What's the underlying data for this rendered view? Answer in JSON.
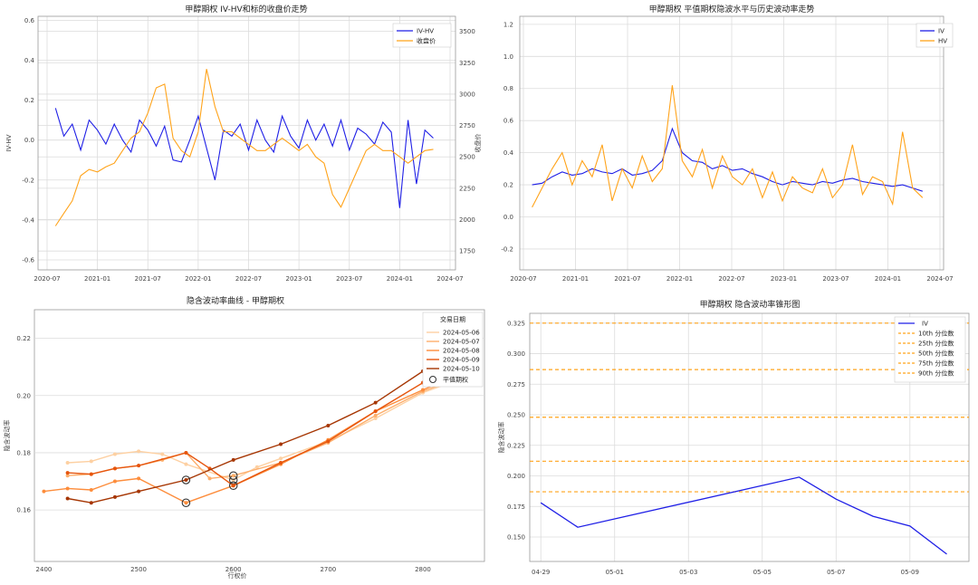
{
  "chart_data": [
    {
      "type": "line",
      "title": "甲醇期权 IV-HV和标的收盘价走势",
      "ylabel": "IV-HV",
      "y2label": "收盘价",
      "x_ticks": [
        "2020-07",
        "2021-01",
        "2021-07",
        "2022-01",
        "2022-07",
        "2023-01",
        "2023-07",
        "2024-01",
        "2024-07"
      ],
      "y_ticks": [
        "0.6",
        "0.4",
        "0.2",
        "0.0",
        "-0.2",
        "-0.4",
        "-0.6"
      ],
      "y2_ticks": [
        "3500",
        "3250",
        "3000",
        "2750",
        "2500",
        "2250",
        "2000",
        "1750"
      ],
      "xlim": [
        "2020-07",
        "2024-07"
      ],
      "ylim": [
        -0.65,
        0.62
      ],
      "y2lim": [
        1600,
        3620
      ],
      "legend_position": "top-right",
      "series": [
        {
          "name": "IV-HV",
          "axis": "left",
          "color": "#1f1fe6",
          "x": [
            "2020-08",
            "2020-09",
            "2020-10",
            "2020-11",
            "2020-12",
            "2021-01",
            "2021-02",
            "2021-03",
            "2021-04",
            "2021-05",
            "2021-06",
            "2021-07",
            "2021-08",
            "2021-09",
            "2021-10",
            "2021-11",
            "2021-12",
            "2022-01",
            "2022-02",
            "2022-03",
            "2022-04",
            "2022-05",
            "2022-06",
            "2022-07",
            "2022-08",
            "2022-09",
            "2022-10",
            "2022-11",
            "2022-12",
            "2023-01",
            "2023-02",
            "2023-03",
            "2023-04",
            "2023-05",
            "2023-06",
            "2023-07",
            "2023-08",
            "2023-09",
            "2023-10",
            "2023-11",
            "2023-12",
            "2024-01",
            "2024-02",
            "2024-03",
            "2024-04",
            "2024-05"
          ],
          "values": [
            0.16,
            0.02,
            0.08,
            -0.05,
            0.1,
            0.05,
            -0.02,
            0.08,
            0.0,
            -0.06,
            0.1,
            0.05,
            -0.03,
            0.07,
            -0.1,
            -0.11,
            0.0,
            0.12,
            -0.04,
            -0.2,
            0.05,
            0.02,
            0.08,
            -0.05,
            0.1,
            0.0,
            -0.06,
            0.12,
            0.02,
            -0.04,
            0.1,
            0.0,
            0.08,
            -0.03,
            0.1,
            -0.05,
            0.06,
            0.03,
            -0.02,
            0.09,
            0.04,
            -0.34,
            0.1,
            -0.22,
            0.05,
            0.01
          ]
        },
        {
          "name": "收盘价",
          "axis": "right",
          "color": "#ffa31a",
          "x": [
            "2020-08",
            "2020-09",
            "2020-10",
            "2020-11",
            "2020-12",
            "2021-01",
            "2021-02",
            "2021-03",
            "2021-04",
            "2021-05",
            "2021-06",
            "2021-07",
            "2021-08",
            "2021-09",
            "2021-10",
            "2021-11",
            "2021-12",
            "2022-01",
            "2022-02",
            "2022-03",
            "2022-04",
            "2022-05",
            "2022-06",
            "2022-07",
            "2022-08",
            "2022-09",
            "2022-10",
            "2022-11",
            "2022-12",
            "2023-01",
            "2023-02",
            "2023-03",
            "2023-04",
            "2023-05",
            "2023-06",
            "2023-07",
            "2023-08",
            "2023-09",
            "2023-10",
            "2023-11",
            "2023-12",
            "2024-01",
            "2024-02",
            "2024-03",
            "2024-04",
            "2024-05"
          ],
          "values": [
            1950,
            2050,
            2150,
            2350,
            2400,
            2380,
            2420,
            2450,
            2550,
            2650,
            2700,
            2850,
            3050,
            3080,
            2650,
            2550,
            2500,
            2700,
            3200,
            2900,
            2700,
            2700,
            2650,
            2600,
            2550,
            2550,
            2600,
            2650,
            2600,
            2550,
            2600,
            2500,
            2450,
            2200,
            2100,
            2250,
            2400,
            2550,
            2600,
            2550,
            2550,
            2500,
            2450,
            2500,
            2550,
            2560
          ]
        }
      ]
    },
    {
      "type": "line",
      "title": "甲醇期权 平值期权隐波水平与历史波动率走势",
      "x_ticks": [
        "2020-07",
        "2021-01",
        "2021-07",
        "2022-01",
        "2022-07",
        "2023-01",
        "2023-07",
        "2024-01",
        "2024-07"
      ],
      "y_ticks": [
        "1.2",
        "1.0",
        "0.8",
        "0.6",
        "0.4",
        "0.2",
        "0.0",
        "-0.2"
      ],
      "xlim": [
        "2020-07",
        "2024-07"
      ],
      "ylim": [
        -0.33,
        1.25
      ],
      "legend_position": "top-right",
      "series": [
        {
          "name": "IV",
          "color": "#1f1fe6",
          "values": [
            0.2,
            0.21,
            0.25,
            0.28,
            0.26,
            0.27,
            0.3,
            0.28,
            0.27,
            0.3,
            0.26,
            0.27,
            0.29,
            0.35,
            0.55,
            0.4,
            0.35,
            0.34,
            0.3,
            0.32,
            0.29,
            0.3,
            0.27,
            0.25,
            0.22,
            0.2,
            0.22,
            0.21,
            0.2,
            0.22,
            0.21,
            0.23,
            0.24,
            0.22,
            0.21,
            0.2,
            0.19,
            0.2,
            0.18,
            0.16
          ]
        },
        {
          "name": "HV",
          "color": "#ffa31a",
          "values": [
            0.06,
            0.18,
            0.3,
            0.4,
            0.2,
            0.35,
            0.25,
            0.45,
            0.1,
            0.3,
            0.18,
            0.38,
            0.22,
            0.3,
            0.82,
            0.35,
            0.25,
            0.42,
            0.18,
            0.38,
            0.25,
            0.2,
            0.3,
            0.12,
            0.28,
            0.1,
            0.25,
            0.18,
            0.15,
            0.3,
            0.12,
            0.2,
            0.45,
            0.14,
            0.25,
            0.22,
            0.08,
            0.53,
            0.18,
            0.12
          ]
        }
      ]
    },
    {
      "type": "line",
      "title": "隐含波动率曲线 - 甲醇期权",
      "xlabel": "行权价",
      "ylabel": "隐含波动率",
      "x_ticks": [
        "2400",
        "2500",
        "2600",
        "2700",
        "2800"
      ],
      "y_ticks": [
        "0.22",
        "0.20",
        "0.18",
        "0.16"
      ],
      "xlim": [
        2390,
        2865
      ],
      "ylim": [
        0.142,
        0.23
      ],
      "legend_title": "交易日期",
      "legend_position": "top-right",
      "atm_label": "平值期权",
      "series": [
        {
          "name": "2024-05-06",
          "color": "#fdd0a2",
          "x": [
            2425,
            2450,
            2475,
            2500,
            2525,
            2550,
            2600,
            2625,
            2650,
            2700,
            2750,
            2800,
            2850
          ],
          "values": [
            0.1765,
            0.177,
            0.1795,
            0.1805,
            0.1795,
            0.176,
            0.1705,
            0.175,
            0.178,
            0.184,
            0.192,
            0.201,
            0.207
          ],
          "atm": [
            2600,
            0.1705
          ]
        },
        {
          "name": "2024-05-07",
          "color": "#fdae6b",
          "x": [
            2425,
            2450,
            2475,
            2500,
            2525,
            2550,
            2575,
            2600,
            2650,
            2700,
            2750,
            2800,
            2850
          ],
          "values": [
            0.172,
            0.1725,
            0.1745,
            0.1755,
            0.1775,
            0.18,
            0.171,
            0.172,
            0.1765,
            0.1835,
            0.193,
            0.2015,
            0.2075
          ],
          "atm": [
            2600,
            0.172
          ]
        },
        {
          "name": "2024-05-08",
          "color": "#fd8d3c",
          "x": [
            2400,
            2425,
            2450,
            2475,
            2500,
            2550,
            2600,
            2650,
            2700,
            2750,
            2800,
            2850
          ],
          "values": [
            0.1665,
            0.1675,
            0.167,
            0.17,
            0.171,
            0.1625,
            0.1685,
            0.176,
            0.1845,
            0.1945,
            0.202,
            0.209
          ],
          "atm": [
            2550,
            0.1625
          ]
        },
        {
          "name": "2024-05-09",
          "color": "#e6550d",
          "x": [
            2425,
            2450,
            2475,
            2500,
            2550,
            2575,
            2600,
            2650,
            2700,
            2750,
            2800,
            2850
          ],
          "values": [
            0.173,
            0.1725,
            0.1745,
            0.1755,
            0.18,
            0.1745,
            0.1685,
            0.1765,
            0.184,
            0.1945,
            0.2045,
            0.2095
          ],
          "atm": [
            2600,
            0.1685
          ]
        },
        {
          "name": "2024-05-10",
          "color": "#a63603",
          "x": [
            2425,
            2450,
            2475,
            2500,
            2550,
            2600,
            2650,
            2700,
            2750,
            2800,
            2850
          ],
          "values": [
            0.164,
            0.1625,
            0.1645,
            0.1665,
            0.1705,
            0.1775,
            0.183,
            0.1895,
            0.1975,
            0.2085,
            0.2145
          ],
          "atm": [
            2550,
            0.1705
          ]
        }
      ]
    },
    {
      "type": "line",
      "title": "甲醇期权 隐含波动率锥形图",
      "ylabel": "隐含波动率",
      "x_ticks": [
        "04-29",
        "05-01",
        "05-03",
        "05-05",
        "05-07",
        "05-09"
      ],
      "y_ticks": [
        "0.325",
        "0.300",
        "0.275",
        "0.250",
        "0.225",
        "0.200",
        "0.175",
        "0.150"
      ],
      "ylim": [
        0.13,
        0.333
      ],
      "legend_position": "top-right",
      "series": [
        {
          "name": "IV",
          "color": "#1f1fe6",
          "x": [
            "04-29",
            "04-30",
            "05-06",
            "05-07",
            "05-08",
            "05-09",
            "05-10"
          ],
          "values": [
            0.178,
            0.158,
            0.199,
            0.181,
            0.167,
            0.159,
            0.136
          ]
        }
      ],
      "percentiles": [
        {
          "name": "10th 分位数",
          "value": 0.187,
          "color": "#ffa31a"
        },
        {
          "name": "25th 分位数",
          "value": 0.212,
          "color": "#ffa31a"
        },
        {
          "name": "50th 分位数",
          "value": 0.248,
          "color": "#ffa31a"
        },
        {
          "name": "75th 分位数",
          "value": 0.287,
          "color": "#ffa31a"
        },
        {
          "name": "90th 分位数",
          "value": 0.325,
          "color": "#ffa31a"
        }
      ]
    }
  ]
}
